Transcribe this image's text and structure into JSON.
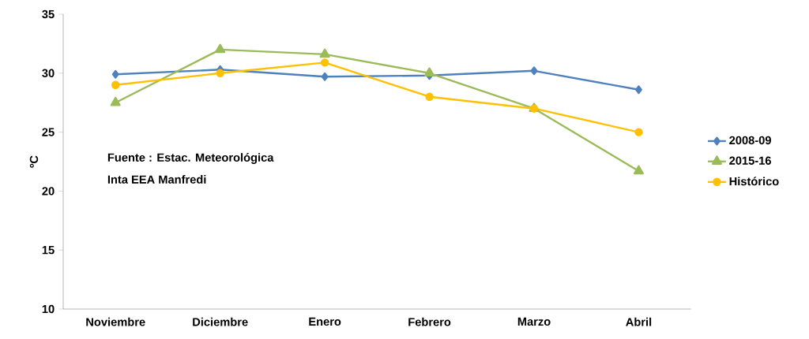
{
  "chart_data": {
    "type": "line",
    "ylabel": "ºC",
    "categories": [
      "Noviembre",
      "Diciembre",
      "Enero",
      "Febrero",
      "Marzo",
      "Abril"
    ],
    "series": [
      {
        "name": "2008-09",
        "color": "#4f81bd",
        "marker": "diamond",
        "values": [
          29.9,
          30.3,
          29.7,
          29.8,
          30.2,
          28.6
        ]
      },
      {
        "name": "2015-16",
        "color": "#9bbb59",
        "marker": "triangle",
        "values": [
          27.5,
          32.0,
          31.6,
          30.0,
          27.0,
          21.7
        ]
      },
      {
        "name": "Histórico",
        "color": "#ffc000",
        "marker": "circle",
        "values": [
          29.0,
          30.0,
          30.9,
          28.0,
          27.0,
          25.0
        ]
      }
    ],
    "ylim": [
      10,
      35
    ],
    "yticks": [
      10,
      15,
      20,
      25,
      30,
      35
    ],
    "grid": false,
    "legend": "right",
    "annotations": [
      "Fuente : Estac. Meteorológica",
      "Inta EEA Manfredi"
    ]
  }
}
